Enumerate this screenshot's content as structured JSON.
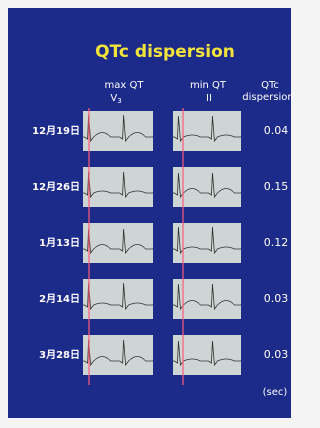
{
  "title": "QTc dispersion",
  "columns": {
    "max_qt": {
      "label": "max QT",
      "lead": "V",
      "lead_sub": "3"
    },
    "min_qt": {
      "label": "min QT",
      "lead": "II"
    },
    "dispersion": {
      "line1": "QTc",
      "line2": "dispersion"
    }
  },
  "rows": [
    {
      "date": "12月19日",
      "dispersion": 0.04
    },
    {
      "date": "12月26日",
      "dispersion": 0.15
    },
    {
      "date": "1月13日",
      "dispersion": 0.12
    },
    {
      "date": "2月14日",
      "dispersion": 0.03
    },
    {
      "date": "3月28日",
      "dispersion": 0.03
    }
  ],
  "unit": "(sec)"
}
